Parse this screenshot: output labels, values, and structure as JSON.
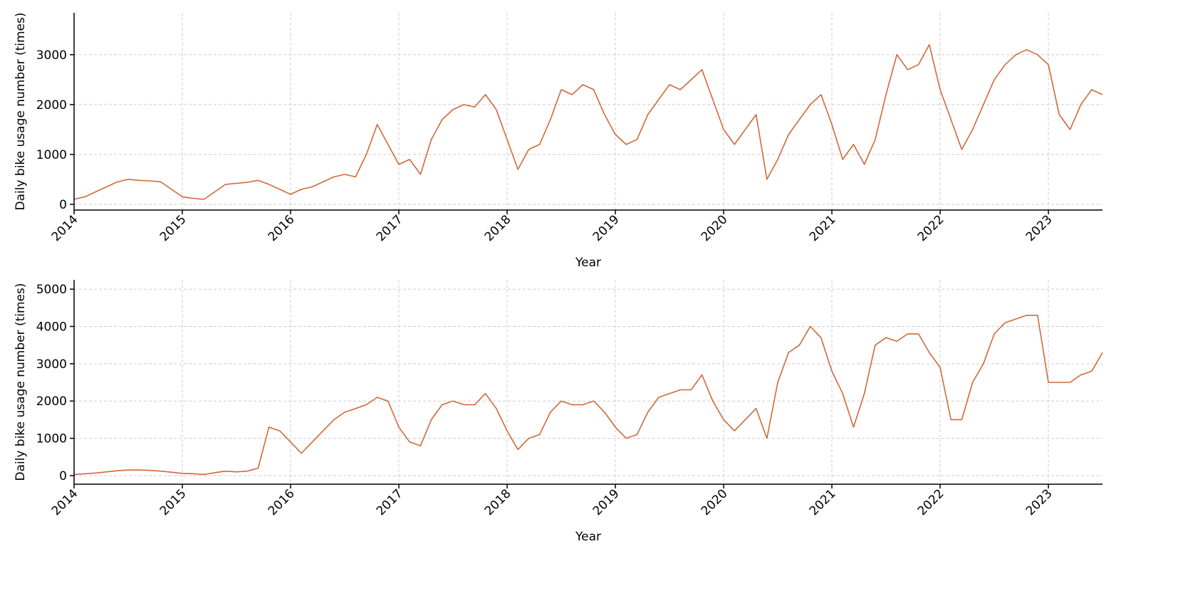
{
  "chart_data": [
    {
      "type": "line",
      "xlabel": "Year",
      "ylabel": "Daily bike usage number (times)",
      "color": "#d0693a",
      "grid": true,
      "xlim": [
        2014,
        2023.5
      ],
      "ylim": [
        -115,
        3840
      ],
      "xticks": [
        2014,
        2015,
        2016,
        2017,
        2018,
        2019,
        2020,
        2021,
        2022,
        2023
      ],
      "yticks": [
        0,
        1000,
        2000,
        3000
      ],
      "x": [
        2014,
        2014.1,
        2014.2,
        2014.3,
        2014.4,
        2014.5,
        2014.6,
        2014.7,
        2014.8,
        2014.9,
        2015,
        2015.1,
        2015.2,
        2015.3,
        2015.4,
        2015.5,
        2015.6,
        2015.7,
        2015.8,
        2015.9,
        2016,
        2016.1,
        2016.2,
        2016.3,
        2016.4,
        2016.5,
        2016.6,
        2016.7,
        2016.8,
        2016.9,
        2017,
        2017.1,
        2017.2,
        2017.3,
        2017.4,
        2017.5,
        2017.6,
        2017.7,
        2017.8,
        2017.9,
        2018,
        2018.1,
        2018.2,
        2018.3,
        2018.4,
        2018.5,
        2018.6,
        2018.7,
        2018.8,
        2018.9,
        2019,
        2019.1,
        2019.2,
        2019.3,
        2019.4,
        2019.5,
        2019.6,
        2019.7,
        2019.8,
        2019.9,
        2020,
        2020.1,
        2020.2,
        2020.3,
        2020.4,
        2020.5,
        2020.6,
        2020.7,
        2020.8,
        2020.9,
        2021,
        2021.1,
        2021.2,
        2021.3,
        2021.4,
        2021.5,
        2021.6,
        2021.7,
        2021.8,
        2021.9,
        2022,
        2022.1,
        2022.2,
        2022.3,
        2022.4,
        2022.5,
        2022.6,
        2022.7,
        2022.8,
        2022.9,
        2023,
        2023.1,
        2023.2,
        2023.3,
        2023.4,
        2023.5
      ],
      "values": [
        100,
        150,
        250,
        350,
        450,
        500,
        480,
        470,
        450,
        300,
        150,
        120,
        100,
        250,
        400,
        420,
        440,
        480,
        400,
        300,
        200,
        300,
        350,
        450,
        550,
        600,
        550,
        1000,
        1600,
        1200,
        800,
        900,
        600,
        1300,
        1700,
        1900,
        2000,
        1950,
        2200,
        1900,
        1300,
        700,
        1100,
        1200,
        1700,
        2300,
        2200,
        2400,
        2300,
        1800,
        1400,
        1200,
        1300,
        1800,
        2100,
        2400,
        2300,
        2500,
        2700,
        2100,
        1500,
        1200,
        1500,
        1800,
        500,
        900,
        1400,
        1700,
        2000,
        2200,
        1600,
        900,
        1200,
        800,
        1300,
        2200,
        3000,
        2700,
        2800,
        3200,
        2300,
        1700,
        1100,
        1500,
        2000,
        2500,
        2800,
        3000,
        3100,
        3000,
        2800,
        1800,
        1500,
        2000,
        2300,
        2200
      ]
    },
    {
      "type": "line",
      "xlabel": "Year",
      "ylabel": "Daily bike usage number (times)",
      "color": "#d0693a",
      "grid": true,
      "xlim": [
        2014,
        2023.5
      ],
      "ylim": [
        -230,
        5250
      ],
      "xticks": [
        2014,
        2015,
        2016,
        2017,
        2018,
        2019,
        2020,
        2021,
        2022,
        2023
      ],
      "yticks": [
        0,
        1000,
        2000,
        3000,
        4000,
        5000
      ],
      "x": [
        2014,
        2014.1,
        2014.2,
        2014.3,
        2014.4,
        2014.5,
        2014.6,
        2014.7,
        2014.8,
        2014.9,
        2015,
        2015.1,
        2015.2,
        2015.3,
        2015.4,
        2015.5,
        2015.6,
        2015.7,
        2015.8,
        2015.9,
        2016,
        2016.1,
        2016.2,
        2016.3,
        2016.4,
        2016.5,
        2016.6,
        2016.7,
        2016.8,
        2016.9,
        2017,
        2017.1,
        2017.2,
        2017.3,
        2017.4,
        2017.5,
        2017.6,
        2017.7,
        2017.8,
        2017.9,
        2018,
        2018.1,
        2018.2,
        2018.3,
        2018.4,
        2018.5,
        2018.6,
        2018.7,
        2018.8,
        2018.9,
        2019,
        2019.1,
        2019.2,
        2019.3,
        2019.4,
        2019.5,
        2019.6,
        2019.7,
        2019.8,
        2019.9,
        2020,
        2020.1,
        2020.2,
        2020.3,
        2020.4,
        2020.5,
        2020.6,
        2020.7,
        2020.8,
        2020.9,
        2021,
        2021.1,
        2021.2,
        2021.3,
        2021.4,
        2021.5,
        2021.6,
        2021.7,
        2021.8,
        2021.9,
        2022,
        2022.1,
        2022.2,
        2022.3,
        2022.4,
        2022.5,
        2022.6,
        2022.7,
        2022.8,
        2022.9,
        2023,
        2023.1,
        2023.2,
        2023.3,
        2023.4,
        2023.5
      ],
      "values": [
        30,
        50,
        70,
        100,
        130,
        150,
        150,
        140,
        120,
        90,
        60,
        50,
        30,
        80,
        120,
        100,
        120,
        200,
        1300,
        1200,
        900,
        600,
        900,
        1200,
        1500,
        1700,
        1800,
        1900,
        2100,
        2000,
        1300,
        900,
        800,
        1500,
        1900,
        2000,
        1900,
        1900,
        2200,
        1800,
        1200,
        700,
        1000,
        1100,
        1700,
        2000,
        1900,
        1900,
        2000,
        1700,
        1300,
        1000,
        1100,
        1700,
        2100,
        2200,
        2300,
        2300,
        2700,
        2000,
        1500,
        1200,
        1500,
        1800,
        1000,
        2500,
        3300,
        3500,
        4000,
        3700,
        2800,
        2200,
        1300,
        2200,
        3500,
        3700,
        3600,
        3800,
        3800,
        3300,
        2900,
        1500,
        1500,
        2500,
        3000,
        3800,
        4100,
        4200,
        4300,
        4300,
        2500,
        2500,
        2500,
        2700,
        2800,
        3300
      ]
    }
  ]
}
